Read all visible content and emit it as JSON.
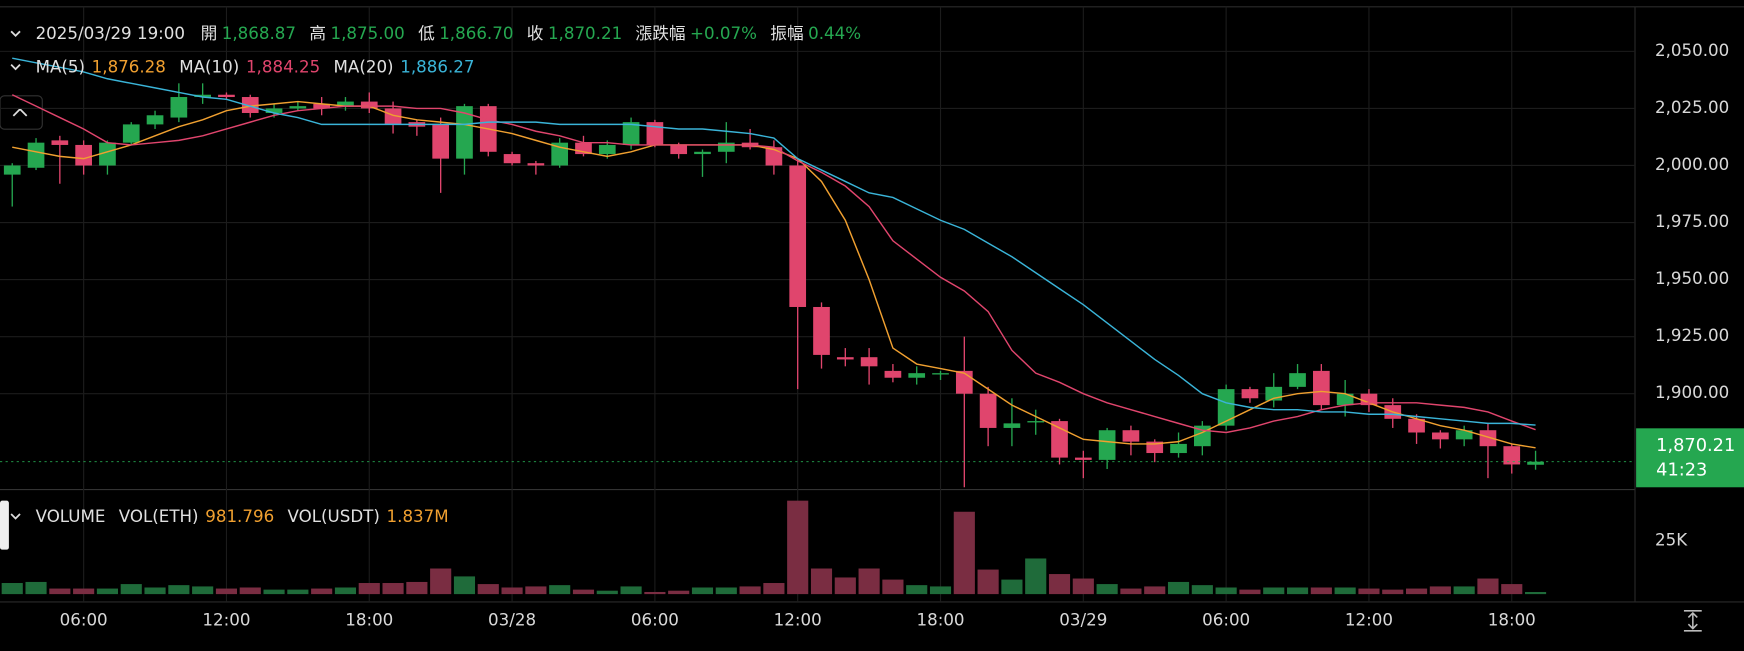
{
  "info": {
    "time": "2025/03/29 19:00",
    "fields": [
      {
        "label": "開",
        "value": "1,868.87"
      },
      {
        "label": "高",
        "value": "1,875.00"
      },
      {
        "label": "低",
        "value": "1,866.70"
      },
      {
        "label": "收",
        "value": "1,870.21"
      },
      {
        "label": "漲跌幅",
        "value": "+0.07%"
      },
      {
        "label": "振幅",
        "value": "0.44%"
      }
    ]
  },
  "chart_data": {
    "type": "candlestick",
    "categories": [
      null,
      null,
      null,
      "06:00",
      null,
      null,
      null,
      null,
      null,
      "12:00",
      null,
      null,
      null,
      null,
      null,
      "18:00",
      null,
      null,
      null,
      null,
      null,
      "03/28",
      null,
      null,
      null,
      null,
      null,
      "06:00",
      null,
      null,
      null,
      null,
      null,
      "12:00",
      null,
      null,
      null,
      null,
      null,
      "18:00",
      null,
      null,
      null,
      null,
      null,
      "03/29",
      null,
      null,
      null,
      null,
      null,
      "06:00",
      null,
      null,
      null,
      null,
      null,
      "12:00",
      null,
      null,
      null,
      null,
      null,
      "18:00",
      null
    ],
    "open": [
      1996,
      1999,
      2011,
      2009,
      2000,
      2010,
      2018,
      2021,
      2030,
      2031,
      2030,
      2023,
      2025,
      2027,
      2026,
      2028,
      2025,
      2019,
      2018,
      2003,
      2026,
      2005,
      2001,
      2000,
      2010,
      2005,
      2009,
      2019,
      2009,
      2005,
      2006,
      2010,
      2008,
      2000,
      1938,
      1916,
      1916,
      1910,
      1907,
      1909,
      1910,
      1900,
      1885,
      1888,
      1888,
      1872,
      1871,
      1884,
      1879,
      1874,
      1877,
      1886,
      1902,
      1897,
      1903,
      1910,
      1895,
      1900,
      1895,
      1889,
      1883,
      1880,
      1884,
      1877,
      1868.87
    ],
    "high": [
      2001,
      2012,
      2013,
      2011,
      2011,
      2019,
      2024,
      2036,
      2036,
      2032,
      2031,
      2027,
      2028,
      2030,
      2030,
      2032,
      2028,
      2020,
      2021,
      2027,
      2027,
      2006,
      2002,
      2012,
      2013,
      2011,
      2021,
      2020,
      2010,
      2007,
      2019,
      2016,
      2011,
      2003,
      1940,
      1920,
      1920,
      1913,
      1912,
      1910,
      1925,
      1903,
      1898,
      1893,
      1889,
      1875,
      1885,
      1886,
      1880,
      1883,
      1888,
      1904,
      1903,
      1909,
      1913,
      1913,
      1906,
      1902,
      1898,
      1891,
      1884,
      1886,
      1887,
      1878,
      1875
    ],
    "low": [
      1982,
      1998,
      1992,
      1996,
      1996,
      2009,
      2016,
      2019,
      2027,
      2029,
      2021,
      2021,
      2024,
      2022,
      2024,
      2023,
      2014,
      2013,
      1988,
      1996,
      2004,
      2000,
      1996,
      1999,
      2004,
      2003,
      2007,
      2008,
      2003,
      1995,
      2001,
      2007,
      1996,
      1902,
      1911,
      1912,
      1904,
      1905,
      1904,
      1906,
      1859,
      1877,
      1877,
      1882,
      1869,
      1863,
      1867,
      1873,
      1870,
      1872,
      1873,
      1884,
      1896,
      1894,
      1902,
      1893,
      1890,
      1892,
      1885,
      1878,
      1876,
      1877,
      1863,
      1865,
      1866.7
    ],
    "close": [
      2000,
      2010,
      2009,
      2000,
      2010,
      2018,
      2022,
      2030,
      2031,
      2030,
      2023,
      2025,
      2026,
      2025,
      2028,
      2025,
      2018,
      2017,
      2003,
      2026,
      2006,
      2001,
      2000,
      2010,
      2005,
      2009,
      2019,
      2009,
      2005,
      2006,
      2010,
      2008,
      2000,
      1938,
      1917,
      1915,
      1912,
      1907,
      1909,
      1909,
      1900,
      1885,
      1887,
      1888,
      1872,
      1871,
      1884,
      1879,
      1874,
      1878,
      1886,
      1902,
      1898,
      1903,
      1909,
      1895,
      1900,
      1895,
      1889,
      1883,
      1880,
      1884,
      1877,
      1869,
      1870.21
    ],
    "up_color": "#25a750",
    "down_color": "#e0456d",
    "series": [
      {
        "name": "MA(5)",
        "color": "#f0a030",
        "legend_value": "1,876.28",
        "values": [
          2008,
          2006,
          2004,
          2003,
          2006,
          2009,
          2013,
          2017,
          2020,
          2024,
          2026,
          2027,
          2028,
          2027,
          2026,
          2026,
          2022,
          2020,
          2019,
          2018,
          2016,
          2014,
          2011,
          2008,
          2006,
          2004,
          2006,
          2009,
          2009,
          2009,
          2009,
          2009,
          2007,
          2003,
          1993,
          1976,
          1950,
          1920,
          1913,
          1911,
          1909,
          1902,
          1895,
          1890,
          1885,
          1880,
          1879,
          1878,
          1878,
          1879,
          1883,
          1888,
          1893,
          1898,
          1900,
          1901,
          1900,
          1896,
          1892,
          1889,
          1886,
          1884,
          1881,
          1878,
          1876.28
        ]
      },
      {
        "name": "MA(10)",
        "color": "#e0456d",
        "legend_value": "1,884.25",
        "values": [
          2031,
          2026,
          2021,
          2016,
          2010,
          2009,
          2010,
          2011,
          2013,
          2016,
          2019,
          2022,
          2024,
          2025,
          2026,
          2026,
          2026,
          2025,
          2025,
          2023,
          2020,
          2018,
          2015,
          2013,
          2010,
          2010,
          2009,
          2009,
          2009,
          2009,
          2009,
          2009,
          2008,
          2002,
          1997,
          1991,
          1982,
          1967,
          1959,
          1951,
          1945,
          1936,
          1919,
          1909,
          1905,
          1900,
          1896,
          1893,
          1890,
          1887,
          1884,
          1883,
          1885,
          1888,
          1890,
          1893,
          1895,
          1896,
          1896,
          1896,
          1895,
          1894,
          1892,
          1888,
          1884.25
        ]
      },
      {
        "name": "MA(20)",
        "color": "#3ab4d8",
        "legend_value": "1,886.27",
        "values": [
          2047,
          2045,
          2043,
          2041,
          2038,
          2036,
          2034,
          2032,
          2030,
          2029,
          2026,
          2023,
          2021,
          2018,
          2018,
          2018,
          2018,
          2018,
          2018,
          2018,
          2019,
          2019,
          2019,
          2018,
          2018,
          2018,
          2018,
          2017,
          2016,
          2016,
          2015,
          2014,
          2012,
          2003,
          1998,
          1993,
          1988,
          1986,
          1981,
          1976,
          1972,
          1966,
          1960,
          1953,
          1946,
          1939,
          1931,
          1923,
          1915,
          1908,
          1900,
          1896,
          1894,
          1893,
          1893,
          1892,
          1892,
          1891,
          1891,
          1890,
          1889,
          1888,
          1887,
          1887,
          1886.27
        ]
      }
    ],
    "ylim": [
      1858,
      2070
    ],
    "yticks": [
      {
        "value": 1900,
        "label": "1,900.00"
      },
      {
        "value": 1925,
        "label": "1,925.00"
      },
      {
        "value": 1950,
        "label": "1,950.00"
      },
      {
        "value": 1975,
        "label": "1,975.00"
      },
      {
        "value": 2000,
        "label": "2,000.00"
      },
      {
        "value": 2025,
        "label": "2,025.00"
      },
      {
        "value": 2050,
        "label": "2,050.00"
      }
    ],
    "grid": true,
    "last_price": {
      "value": 1870.21,
      "label": "1,870.21",
      "countdown": "41:23",
      "color": "#25a750"
    },
    "volume": {
      "title": "VOLUME",
      "fields": [
        {
          "label": "VOL(ETH)",
          "value": "981.796"
        },
        {
          "label": "VOL(USDT)",
          "value": "1.837M"
        }
      ],
      "up_color": "#1f6b3a",
      "down_color": "#7a2d42",
      "values": [
        5200,
        5700,
        2600,
        2600,
        2600,
        4700,
        3100,
        4200,
        3600,
        2600,
        3100,
        2100,
        2100,
        2600,
        3100,
        5200,
        5200,
        5700,
        12000,
        8300,
        4700,
        3100,
        3600,
        4200,
        2100,
        1600,
        3600,
        1000,
        1600,
        3100,
        3100,
        3600,
        5200,
        43800,
        12000,
        7800,
        12000,
        6800,
        4200,
        3600,
        38600,
        11500,
        6800,
        16700,
        9400,
        7300,
        4700,
        2600,
        3600,
        5700,
        4200,
        3100,
        2100,
        3100,
        3100,
        3100,
        3100,
        2600,
        2100,
        2600,
        3600,
        3600,
        7300,
        4700,
        981.796
      ],
      "ylim": [
        0,
        46400
      ],
      "yticks": [
        {
          "value": 25000,
          "label": "25K"
        }
      ]
    }
  }
}
